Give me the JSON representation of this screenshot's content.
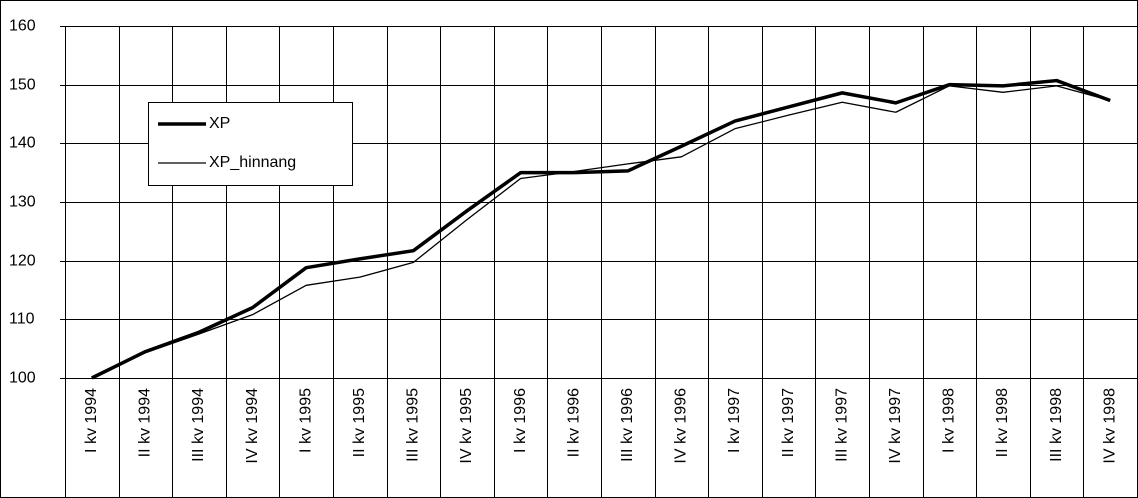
{
  "chart_data": {
    "type": "line",
    "categories": [
      "I kv 1994",
      "II kv 1994",
      "III kv 1994",
      "IV kv 1994",
      "I kv 1995",
      "II kv 1995",
      "III kv 1995",
      "IV kv 1995",
      "I kv 1996",
      "II kv 1996",
      "III kv 1996",
      "IV kv 1996",
      "I kv 1997",
      "II kv 1997",
      "III kv 1997",
      "IV kv 1997",
      "I kv 1998",
      "II kv 1998",
      "III kv 1998",
      "IV kv 1998"
    ],
    "series": [
      {
        "name": "XP",
        "color": "#000000",
        "line_width": 3.5,
        "values": [
          100,
          104.5,
          107.8,
          112,
          118.8,
          120.3,
          121.7,
          128.5,
          135,
          135,
          135.3,
          139.5,
          143.8,
          146.2,
          148.6,
          146.9,
          150,
          149.8,
          150.7,
          147.3
        ]
      },
      {
        "name": "XP_hinnang",
        "color": "#000000",
        "line_width": 1.3,
        "values": [
          100,
          104.3,
          107.5,
          110.8,
          115.8,
          117.2,
          119.7,
          127,
          134,
          135.2,
          136.5,
          137.7,
          142.5,
          144.8,
          147,
          145.3,
          149.8,
          148.7,
          149.8,
          147.3
        ]
      }
    ],
    "ylim": [
      100,
      160
    ],
    "yticks": [
      100,
      110,
      120,
      130,
      140,
      150,
      160
    ],
    "grid": true,
    "legend": "upper left"
  }
}
